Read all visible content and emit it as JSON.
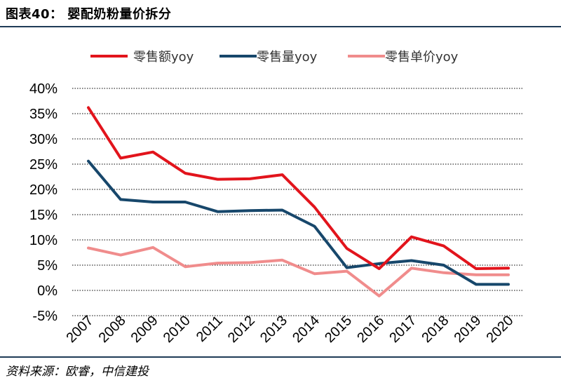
{
  "header": {
    "title": "图表40：  婴配奶粉量价拆分"
  },
  "footer": {
    "source": "资料来源：欧睿，中信建投"
  },
  "chart_data": {
    "type": "line",
    "title": "",
    "xlabel": "",
    "ylabel": "",
    "ylim": [
      -5,
      40
    ],
    "yticks": [
      "-5%",
      "0%",
      "5%",
      "10%",
      "15%",
      "20%",
      "25%",
      "30%",
      "35%",
      "40%"
    ],
    "categories": [
      "2007",
      "2008",
      "2009",
      "2010",
      "2011",
      "2012",
      "2013",
      "2014",
      "2015",
      "2016",
      "2017",
      "2018",
      "2019",
      "2020"
    ],
    "grid": true,
    "legend": "top",
    "series": [
      {
        "name": "零售额yoy",
        "color": "#e2141c",
        "values": [
          36.2,
          26.2,
          27.4,
          23.2,
          22.0,
          22.1,
          22.9,
          16.5,
          8.3,
          4.3,
          10.6,
          8.8,
          4.3,
          4.4
        ]
      },
      {
        "name": "零售量yoy",
        "color": "#17476b",
        "values": [
          25.6,
          18.0,
          17.5,
          17.5,
          15.6,
          15.8,
          15.9,
          12.7,
          4.5,
          5.3,
          5.9,
          5.0,
          1.2,
          1.2
        ]
      },
      {
        "name": "零售单价yoy",
        "color": "#f08c8c",
        "values": [
          8.4,
          7.0,
          8.5,
          4.7,
          5.4,
          5.5,
          6.0,
          3.3,
          3.8,
          -1.1,
          4.4,
          3.5,
          3.1,
          3.1
        ]
      }
    ]
  }
}
